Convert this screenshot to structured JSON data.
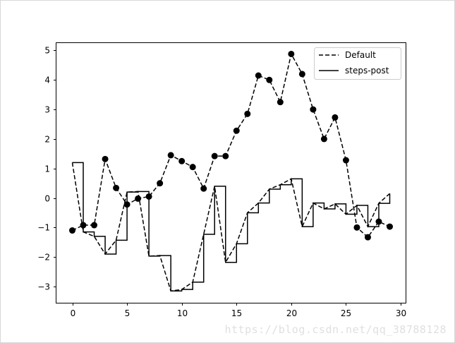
{
  "chart_data": {
    "type": "line",
    "title": "",
    "xlabel": "",
    "ylabel": "",
    "xlim": [
      -1.45,
      30.45
    ],
    "ylim": [
      -3.55,
      5.25
    ],
    "x_ticks": [
      0,
      5,
      10,
      15,
      20,
      25,
      30
    ],
    "y_ticks": [
      -3,
      -2,
      -1,
      0,
      1,
      2,
      3,
      4,
      5
    ],
    "x_tick_labels": [
      "0",
      "5",
      "10",
      "15",
      "20",
      "25",
      "30"
    ],
    "y_tick_labels": [
      "−3",
      "−2",
      "−1",
      "0",
      "1",
      "2",
      "3",
      "4",
      "5"
    ],
    "grid": false,
    "legend_position": "top-right",
    "x": [
      0,
      1,
      2,
      3,
      4,
      5,
      6,
      7,
      8,
      9,
      10,
      11,
      12,
      13,
      14,
      15,
      16,
      17,
      18,
      19,
      20,
      21,
      22,
      23,
      24,
      25,
      26,
      27,
      28,
      29
    ],
    "series": [
      {
        "name": "Default",
        "style": "dashed",
        "values": [
          1.2,
          -1.15,
          -1.3,
          -1.9,
          -1.43,
          0.2,
          0.22,
          -1.97,
          -1.95,
          -3.15,
          -3.1,
          -2.85,
          -1.23,
          0.4,
          -2.18,
          -1.55,
          -0.5,
          -0.17,
          0.3,
          0.45,
          0.65,
          -0.97,
          -0.17,
          -0.37,
          -0.2,
          -0.55,
          -0.25,
          -0.97,
          -0.18,
          0.15
        ]
      },
      {
        "name": "steps-post",
        "style": "steps-post",
        "values": [
          1.2,
          -1.15,
          -1.3,
          -1.9,
          -1.43,
          0.2,
          0.22,
          -1.97,
          -1.95,
          -3.15,
          -3.1,
          -2.85,
          -1.23,
          0.4,
          -2.18,
          -1.55,
          -0.5,
          -0.17,
          0.3,
          0.45,
          0.65,
          -0.97,
          -0.17,
          -0.37,
          -0.2,
          -0.55,
          -0.25,
          -0.97,
          -0.18,
          0.15
        ]
      },
      {
        "name": "",
        "style": "dashed-markers",
        "values": [
          -1.1,
          -0.92,
          -0.92,
          1.32,
          0.34,
          -0.22,
          -0.02,
          0.05,
          0.5,
          1.45,
          1.25,
          1.05,
          0.32,
          1.42,
          1.42,
          2.28,
          2.85,
          4.15,
          4.0,
          3.25,
          4.88,
          4.2,
          3.0,
          2.0,
          2.73,
          1.28,
          -1.0,
          -1.33,
          -0.8,
          -0.97
        ]
      }
    ]
  },
  "watermark": "https://blog.csdn.net/qq_38788128"
}
